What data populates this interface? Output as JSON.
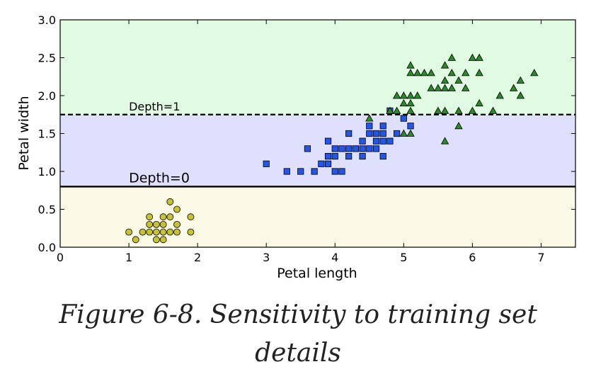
{
  "chart_data": {
    "type": "scatter",
    "title": "",
    "xlabel": "Petal length",
    "ylabel": "Petal width",
    "xlim": [
      0,
      7.5
    ],
    "ylim": [
      0,
      3.0
    ],
    "xticks": [
      "0",
      "1",
      "2",
      "3",
      "4",
      "5",
      "6",
      "7"
    ],
    "yticks": [
      "0.0",
      "0.5",
      "1.0",
      "1.5",
      "2.0",
      "2.5",
      "3.0"
    ],
    "grid": false,
    "regions": [
      {
        "y": [
          0,
          0.8
        ],
        "color": "#fafae6"
      },
      {
        "y": [
          0.8,
          1.75
        ],
        "color": "#dfe0fd"
      },
      {
        "y": [
          1.75,
          3.0
        ],
        "color": "#e0fbe1"
      }
    ],
    "boundaries": [
      {
        "y": 0.8,
        "style": "solid",
        "label": "Depth=0"
      },
      {
        "y": 1.75,
        "style": "dashed",
        "label": "Depth=1"
      }
    ],
    "series": [
      {
        "marker": "circle",
        "color": "#c8c230",
        "points": [
          [
            1.0,
            0.2
          ],
          [
            1.1,
            0.1
          ],
          [
            1.2,
            0.2
          ],
          [
            1.3,
            0.2
          ],
          [
            1.3,
            0.3
          ],
          [
            1.3,
            0.4
          ],
          [
            1.4,
            0.1
          ],
          [
            1.4,
            0.2
          ],
          [
            1.4,
            0.3
          ],
          [
            1.5,
            0.1
          ],
          [
            1.5,
            0.2
          ],
          [
            1.5,
            0.3
          ],
          [
            1.5,
            0.4
          ],
          [
            1.6,
            0.2
          ],
          [
            1.6,
            0.4
          ],
          [
            1.6,
            0.6
          ],
          [
            1.7,
            0.2
          ],
          [
            1.7,
            0.3
          ],
          [
            1.7,
            0.5
          ],
          [
            1.9,
            0.2
          ],
          [
            1.9,
            0.4
          ]
        ]
      },
      {
        "marker": "square",
        "color": "#2255e8",
        "points": [
          [
            3.0,
            1.1
          ],
          [
            3.3,
            1.0
          ],
          [
            3.5,
            1.0
          ],
          [
            3.6,
            1.3
          ],
          [
            3.7,
            1.0
          ],
          [
            3.8,
            1.1
          ],
          [
            3.9,
            1.1
          ],
          [
            3.9,
            1.2
          ],
          [
            3.9,
            1.4
          ],
          [
            4.0,
            1.0
          ],
          [
            4.0,
            1.2
          ],
          [
            4.0,
            1.3
          ],
          [
            4.1,
            1.0
          ],
          [
            4.1,
            1.3
          ],
          [
            4.2,
            1.2
          ],
          [
            4.2,
            1.3
          ],
          [
            4.2,
            1.5
          ],
          [
            4.3,
            1.3
          ],
          [
            4.4,
            1.2
          ],
          [
            4.4,
            1.3
          ],
          [
            4.4,
            1.4
          ],
          [
            4.5,
            1.3
          ],
          [
            4.5,
            1.5
          ],
          [
            4.5,
            1.6
          ],
          [
            4.6,
            1.3
          ],
          [
            4.6,
            1.4
          ],
          [
            4.6,
            1.5
          ],
          [
            4.7,
            1.2
          ],
          [
            4.7,
            1.4
          ],
          [
            4.7,
            1.5
          ],
          [
            4.7,
            1.6
          ],
          [
            4.8,
            1.4
          ],
          [
            4.8,
            1.8
          ],
          [
            4.9,
            1.5
          ],
          [
            5.0,
            1.7
          ],
          [
            5.1,
            1.6
          ]
        ]
      },
      {
        "marker": "triangle",
        "color": "#2a8a2a",
        "points": [
          [
            4.5,
            1.7
          ],
          [
            4.8,
            1.8
          ],
          [
            4.9,
            1.8
          ],
          [
            4.9,
            2.0
          ],
          [
            5.0,
            1.5
          ],
          [
            5.0,
            1.9
          ],
          [
            5.0,
            2.0
          ],
          [
            5.1,
            1.5
          ],
          [
            5.1,
            1.8
          ],
          [
            5.1,
            1.9
          ],
          [
            5.1,
            2.0
          ],
          [
            5.1,
            2.3
          ],
          [
            5.1,
            2.4
          ],
          [
            5.2,
            2.0
          ],
          [
            5.2,
            2.3
          ],
          [
            5.3,
            2.3
          ],
          [
            5.4,
            2.3
          ],
          [
            5.4,
            2.1
          ],
          [
            5.5,
            1.8
          ],
          [
            5.5,
            2.1
          ],
          [
            5.6,
            1.4
          ],
          [
            5.6,
            1.8
          ],
          [
            5.6,
            2.1
          ],
          [
            5.6,
            2.2
          ],
          [
            5.6,
            2.4
          ],
          [
            5.7,
            2.1
          ],
          [
            5.7,
            2.3
          ],
          [
            5.7,
            2.5
          ],
          [
            5.8,
            1.6
          ],
          [
            5.8,
            1.8
          ],
          [
            5.8,
            2.2
          ],
          [
            5.9,
            2.1
          ],
          [
            5.9,
            2.3
          ],
          [
            6.0,
            1.8
          ],
          [
            6.0,
            2.5
          ],
          [
            6.1,
            1.9
          ],
          [
            6.1,
            2.3
          ],
          [
            6.1,
            2.5
          ],
          [
            6.3,
            1.8
          ],
          [
            6.4,
            2.0
          ],
          [
            6.6,
            2.1
          ],
          [
            6.7,
            2.0
          ],
          [
            6.7,
            2.2
          ],
          [
            6.9,
            2.3
          ]
        ]
      }
    ]
  },
  "caption": {
    "line1": "Figure 6-8. Sensitivity to training set",
    "line2": "details"
  }
}
